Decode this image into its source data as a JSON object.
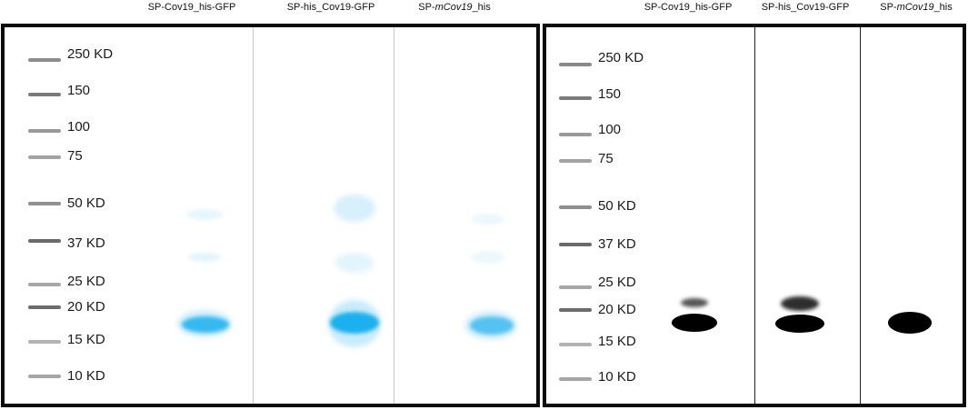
{
  "lane_labels": {
    "left": [
      {
        "text": "SP-Cov19_his-GFP"
      },
      {
        "text": "SP-his_Cov19-GFP"
      },
      {
        "pre": "SP-",
        "ital": "mCov19",
        "post": "_his"
      }
    ],
    "right": [
      {
        "text": "SP-Cov19_his-GFP"
      },
      {
        "text": "SP-his_Cov19-GFP"
      },
      {
        "pre": "SP-",
        "ital": "mCov19",
        "post": "_his"
      }
    ]
  },
  "markers": {
    "left": [
      "250 KD",
      "150",
      "100",
      "75",
      "50 KD",
      "37 KD",
      "25 KD",
      "20 KD",
      "15 KD",
      "10 KD"
    ],
    "right": [
      "250 KD",
      "150",
      "100",
      "75",
      "50 KD",
      "37 KD",
      "25 KD",
      "20 KD",
      "15 KD",
      "10 KD"
    ]
  },
  "colors": {
    "coomassie_band": "#2ab4ee",
    "coomassie_faint": "#cfeefb",
    "western_band": "#000000",
    "ladder_band": "#6e6e6e",
    "panel_border": "#0c0c0c"
  }
}
